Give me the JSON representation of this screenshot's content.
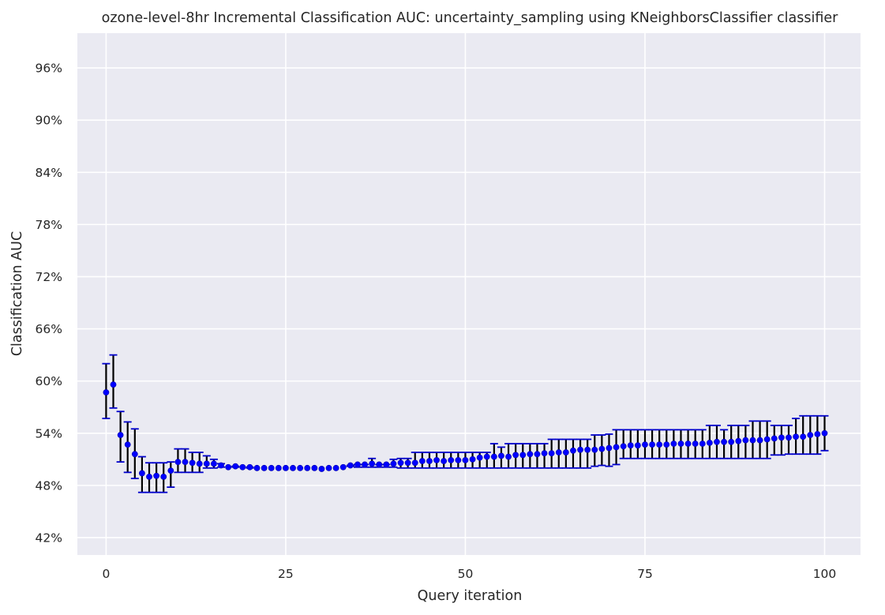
{
  "chart_data": {
    "type": "scatter",
    "title": "ozone-level-8hr Incremental Classification AUC: uncertainty_sampling using KNeighborsClassifier classifier",
    "xlabel": "Query iteration",
    "ylabel": "Classification AUC",
    "xlim": [
      -4,
      105
    ],
    "ylim": [
      0.4,
      1.0
    ],
    "x_ticks": [
      0,
      25,
      50,
      75,
      100
    ],
    "x_tick_labels": [
      "0",
      "25",
      "50",
      "75",
      "100"
    ],
    "y_ticks": [
      0.42,
      0.48,
      0.54,
      0.6,
      0.66,
      0.72,
      0.78,
      0.84,
      0.9,
      0.96
    ],
    "y_tick_labels": [
      "42%",
      "48%",
      "54%",
      "60%",
      "66%",
      "72%",
      "78%",
      "84%",
      "90%",
      "96%"
    ],
    "grid": true,
    "background_color": "#eaeaf2",
    "grid_color": "#ffffff",
    "marker_color": "#0000ff",
    "errorbar_color": "#000000",
    "cap_color": "#0000cc",
    "series": [
      {
        "x": [
          0,
          1,
          2,
          3,
          4,
          5,
          6,
          7,
          8,
          9,
          10,
          11,
          12,
          13,
          14,
          15,
          16,
          17,
          18,
          19,
          20,
          21,
          22,
          23,
          24,
          25,
          26,
          27,
          28,
          29,
          30,
          31,
          32,
          33,
          34,
          35,
          36,
          37,
          38,
          39,
          40,
          41,
          42,
          43,
          44,
          45,
          46,
          47,
          48,
          49,
          50,
          51,
          52,
          53,
          54,
          55,
          56,
          57,
          58,
          59,
          60,
          61,
          62,
          63,
          64,
          65,
          66,
          67,
          68,
          69,
          70,
          71,
          72,
          73,
          74,
          75,
          76,
          77,
          78,
          79,
          80,
          81,
          82,
          83,
          84,
          85,
          86,
          87,
          88,
          89,
          90,
          91,
          92,
          93,
          94,
          95,
          96,
          97,
          98,
          99,
          100
        ],
        "y": [
          0.587,
          0.596,
          0.538,
          0.527,
          0.516,
          0.494,
          0.49,
          0.491,
          0.49,
          0.497,
          0.507,
          0.507,
          0.506,
          0.505,
          0.505,
          0.505,
          0.503,
          0.501,
          0.502,
          0.501,
          0.501,
          0.5,
          0.5,
          0.5,
          0.5,
          0.5,
          0.5,
          0.5,
          0.5,
          0.5,
          0.499,
          0.5,
          0.5,
          0.501,
          0.503,
          0.504,
          0.504,
          0.505,
          0.504,
          0.504,
          0.505,
          0.506,
          0.506,
          0.506,
          0.508,
          0.508,
          0.509,
          0.508,
          0.509,
          0.509,
          0.509,
          0.51,
          0.512,
          0.513,
          0.513,
          0.514,
          0.513,
          0.515,
          0.515,
          0.516,
          0.516,
          0.517,
          0.517,
          0.518,
          0.518,
          0.52,
          0.521,
          0.521,
          0.521,
          0.522,
          0.523,
          0.524,
          0.525,
          0.526,
          0.526,
          0.527,
          0.527,
          0.527,
          0.527,
          0.528,
          0.528,
          0.528,
          0.528,
          0.528,
          0.529,
          0.53,
          0.53,
          0.53,
          0.531,
          0.532,
          0.532,
          0.532,
          0.533,
          0.534,
          0.535,
          0.535,
          0.536,
          0.536,
          0.538,
          0.539,
          0.54
        ],
        "err_low": [
          0.557,
          0.569,
          0.507,
          0.495,
          0.488,
          0.472,
          0.472,
          0.472,
          0.472,
          0.478,
          0.495,
          0.495,
          0.495,
          0.495,
          0.5,
          0.5,
          0.501,
          0.501,
          0.501,
          0.501,
          0.5,
          0.5,
          0.5,
          0.5,
          0.5,
          0.5,
          0.5,
          0.5,
          0.5,
          0.5,
          0.499,
          0.5,
          0.5,
          0.501,
          0.502,
          0.501,
          0.501,
          0.501,
          0.501,
          0.501,
          0.501,
          0.5,
          0.5,
          0.5,
          0.5,
          0.5,
          0.5,
          0.5,
          0.5,
          0.5,
          0.5,
          0.5,
          0.5,
          0.5,
          0.5,
          0.5,
          0.5,
          0.5,
          0.5,
          0.5,
          0.5,
          0.5,
          0.5,
          0.5,
          0.5,
          0.5,
          0.5,
          0.5,
          0.502,
          0.503,
          0.502,
          0.504,
          0.511,
          0.511,
          0.511,
          0.511,
          0.511,
          0.511,
          0.511,
          0.511,
          0.511,
          0.511,
          0.511,
          0.511,
          0.511,
          0.511,
          0.511,
          0.511,
          0.511,
          0.511,
          0.511,
          0.511,
          0.511,
          0.515,
          0.515,
          0.516,
          0.516,
          0.516,
          0.516,
          0.516,
          0.52
        ],
        "err_high": [
          0.62,
          0.63,
          0.565,
          0.553,
          0.545,
          0.513,
          0.506,
          0.506,
          0.506,
          0.507,
          0.522,
          0.522,
          0.518,
          0.518,
          0.514,
          0.51,
          0.505,
          0.501,
          0.502,
          0.501,
          0.501,
          0.5,
          0.5,
          0.5,
          0.5,
          0.5,
          0.5,
          0.5,
          0.5,
          0.5,
          0.499,
          0.5,
          0.5,
          0.501,
          0.503,
          0.504,
          0.504,
          0.511,
          0.504,
          0.504,
          0.51,
          0.511,
          0.511,
          0.518,
          0.518,
          0.518,
          0.518,
          0.518,
          0.518,
          0.518,
          0.518,
          0.518,
          0.518,
          0.518,
          0.528,
          0.524,
          0.528,
          0.528,
          0.528,
          0.528,
          0.528,
          0.528,
          0.533,
          0.533,
          0.533,
          0.533,
          0.533,
          0.533,
          0.538,
          0.538,
          0.539,
          0.544,
          0.544,
          0.544,
          0.544,
          0.544,
          0.544,
          0.544,
          0.544,
          0.544,
          0.544,
          0.544,
          0.544,
          0.544,
          0.549,
          0.549,
          0.544,
          0.549,
          0.549,
          0.549,
          0.554,
          0.554,
          0.554,
          0.549,
          0.549,
          0.549,
          0.557,
          0.56,
          0.56,
          0.56,
          0.56
        ]
      }
    ]
  }
}
